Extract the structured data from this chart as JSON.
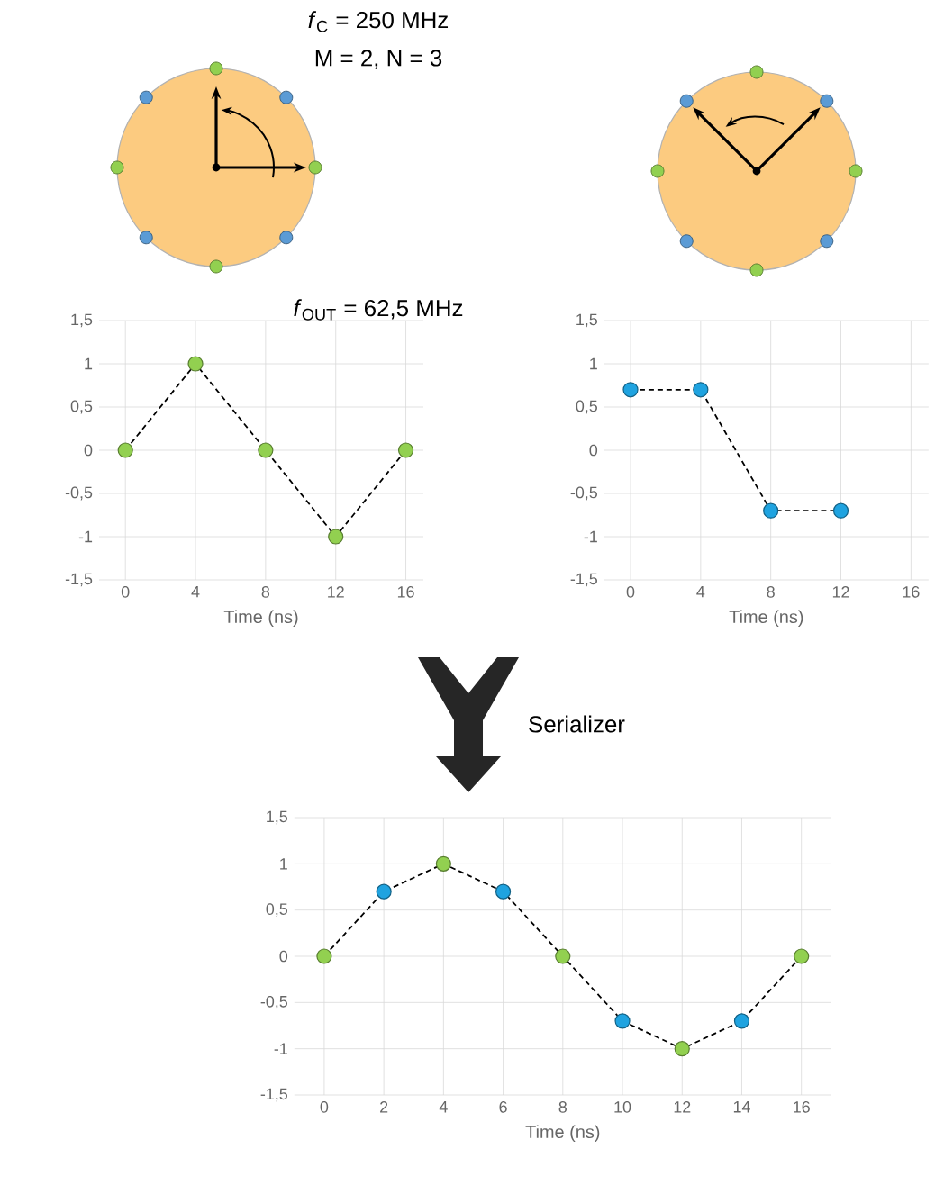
{
  "chart_data": [
    {
      "type": "line",
      "xlabel": "Time (ns)",
      "xlim": [
        -1.5,
        17
      ],
      "ylim": [
        -1.5,
        1.5
      ],
      "xticks": [
        0,
        4,
        8,
        12,
        16
      ],
      "yticks": [
        {
          "value": 1.5,
          "label": "1,5"
        },
        1,
        {
          "value": 0.5,
          "label": "0,5"
        },
        0,
        {
          "value": -0.5,
          "label": "-0,5"
        },
        -1,
        {
          "value": -1.5,
          "label": "-1,5"
        }
      ],
      "grid": true,
      "annotations": [
        "*f*$_{C}$ = 250 MHz",
        "M = 2, N = 3",
        "*f*$_{OUT}$ = 62,5 MHz"
      ],
      "series": [
        {
          "color": "#000000",
          "line_style": "dashed",
          "marker": "none",
          "x": [
            0,
            4,
            8,
            12,
            16
          ],
          "values": [
            0,
            1,
            0,
            -1,
            0
          ]
        },
        {
          "type": "scatter",
          "color": "#92d050",
          "marker": "circle",
          "x": [
            0,
            4,
            8,
            12,
            16
          ],
          "values": [
            0,
            1,
            0,
            -1,
            0
          ]
        }
      ]
    },
    {
      "type": "line",
      "xlabel": "Time (ns)",
      "xlim": [
        -1.5,
        17
      ],
      "ylim": [
        -1.5,
        1.5
      ],
      "xticks": [
        0,
        4,
        8,
        12,
        16
      ],
      "yticks": [
        {
          "value": 1.5,
          "label": "1,5"
        },
        1,
        {
          "value": 0.5,
          "label": "0,5"
        },
        0,
        {
          "value": -0.5,
          "label": "-0,5"
        },
        -1,
        {
          "value": -1.5,
          "label": "-1,5"
        }
      ],
      "grid": true,
      "series": [
        {
          "color": "#000000",
          "line_style": "dashed",
          "marker": "none",
          "x": [
            0,
            4,
            8,
            12
          ],
          "values": [
            0.7,
            0.7,
            -0.7,
            -0.7
          ]
        },
        {
          "type": "scatter",
          "color": "#1fa3e0",
          "marker": "circle",
          "x": [
            0,
            4,
            8,
            12
          ],
          "values": [
            0.7,
            0.7,
            -0.7,
            -0.7
          ]
        }
      ]
    },
    {
      "type": "line",
      "xlabel": "Time (ns)",
      "xlim": [
        -1,
        17
      ],
      "ylim": [
        -1.5,
        1.5
      ],
      "xticks": [
        0,
        2,
        4,
        6,
        8,
        10,
        12,
        14,
        16
      ],
      "yticks": [
        {
          "value": 1.5,
          "label": "1,5"
        },
        1,
        {
          "value": 0.5,
          "label": "0,5"
        },
        0,
        {
          "value": -0.5,
          "label": "-0,5"
        },
        -1,
        {
          "value": -1.5,
          "label": "-1,5"
        }
      ],
      "grid": true,
      "annotations": [
        "Serializer"
      ],
      "series": [
        {
          "color": "#000000",
          "line_style": "dashed",
          "marker": "none",
          "x": [
            0,
            2,
            4,
            6,
            8,
            10,
            12,
            14,
            16
          ],
          "values": [
            0,
            0.7,
            1,
            0.7,
            0,
            -0.7,
            -1,
            -0.7,
            0
          ]
        },
        {
          "type": "scatter",
          "color": "#92d050",
          "marker": "circle",
          "x": [
            0,
            4,
            8,
            12,
            16
          ],
          "values": [
            0,
            1,
            0,
            -1,
            0
          ]
        },
        {
          "type": "scatter",
          "color": "#1fa3e0",
          "marker": "circle",
          "x": [
            2,
            6,
            10,
            14
          ],
          "values": [
            0.7,
            0.7,
            -0.7,
            -0.7
          ]
        }
      ]
    }
  ]
}
